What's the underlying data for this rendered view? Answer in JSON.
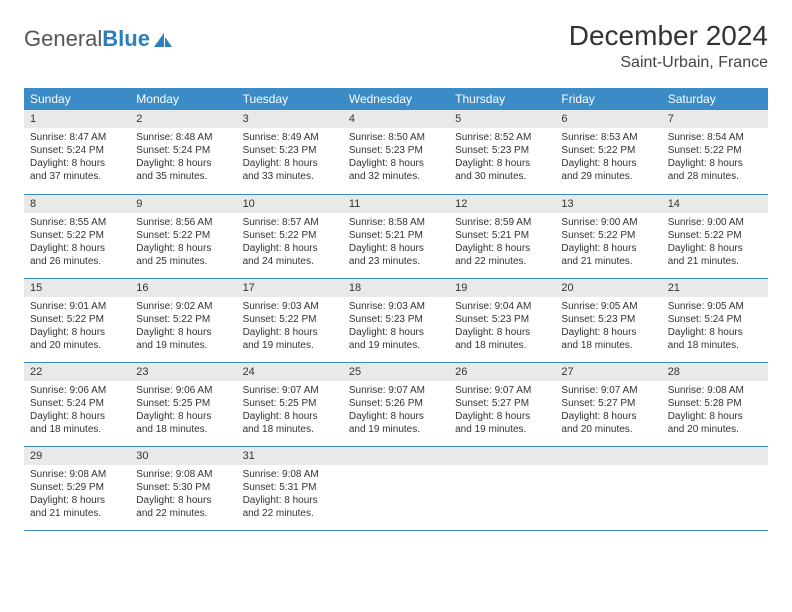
{
  "brand": {
    "part1": "General",
    "part2": "Blue",
    "accent": "#2b7fbc"
  },
  "title": "December 2024",
  "location": "Saint-Urbain, France",
  "colors": {
    "header_bg": "#3b8bc6",
    "header_text": "#ffffff",
    "daynum_bg": "#e9e9e9",
    "row_border": "#3b8bc6",
    "body_text": "#333333",
    "page_bg": "#ffffff"
  },
  "fonts": {
    "title_pt": 28,
    "location_pt": 16,
    "th_pt": 12,
    "daynum_pt": 11,
    "body_pt": 10
  },
  "weekdays": [
    "Sunday",
    "Monday",
    "Tuesday",
    "Wednesday",
    "Thursday",
    "Friday",
    "Saturday"
  ],
  "weeks": [
    [
      {
        "n": "1",
        "sr": "Sunrise: 8:47 AM",
        "ss": "Sunset: 5:24 PM",
        "d1": "Daylight: 8 hours",
        "d2": "and 37 minutes."
      },
      {
        "n": "2",
        "sr": "Sunrise: 8:48 AM",
        "ss": "Sunset: 5:24 PM",
        "d1": "Daylight: 8 hours",
        "d2": "and 35 minutes."
      },
      {
        "n": "3",
        "sr": "Sunrise: 8:49 AM",
        "ss": "Sunset: 5:23 PM",
        "d1": "Daylight: 8 hours",
        "d2": "and 33 minutes."
      },
      {
        "n": "4",
        "sr": "Sunrise: 8:50 AM",
        "ss": "Sunset: 5:23 PM",
        "d1": "Daylight: 8 hours",
        "d2": "and 32 minutes."
      },
      {
        "n": "5",
        "sr": "Sunrise: 8:52 AM",
        "ss": "Sunset: 5:23 PM",
        "d1": "Daylight: 8 hours",
        "d2": "and 30 minutes."
      },
      {
        "n": "6",
        "sr": "Sunrise: 8:53 AM",
        "ss": "Sunset: 5:22 PM",
        "d1": "Daylight: 8 hours",
        "d2": "and 29 minutes."
      },
      {
        "n": "7",
        "sr": "Sunrise: 8:54 AM",
        "ss": "Sunset: 5:22 PM",
        "d1": "Daylight: 8 hours",
        "d2": "and 28 minutes."
      }
    ],
    [
      {
        "n": "8",
        "sr": "Sunrise: 8:55 AM",
        "ss": "Sunset: 5:22 PM",
        "d1": "Daylight: 8 hours",
        "d2": "and 26 minutes."
      },
      {
        "n": "9",
        "sr": "Sunrise: 8:56 AM",
        "ss": "Sunset: 5:22 PM",
        "d1": "Daylight: 8 hours",
        "d2": "and 25 minutes."
      },
      {
        "n": "10",
        "sr": "Sunrise: 8:57 AM",
        "ss": "Sunset: 5:22 PM",
        "d1": "Daylight: 8 hours",
        "d2": "and 24 minutes."
      },
      {
        "n": "11",
        "sr": "Sunrise: 8:58 AM",
        "ss": "Sunset: 5:21 PM",
        "d1": "Daylight: 8 hours",
        "d2": "and 23 minutes."
      },
      {
        "n": "12",
        "sr": "Sunrise: 8:59 AM",
        "ss": "Sunset: 5:21 PM",
        "d1": "Daylight: 8 hours",
        "d2": "and 22 minutes."
      },
      {
        "n": "13",
        "sr": "Sunrise: 9:00 AM",
        "ss": "Sunset: 5:22 PM",
        "d1": "Daylight: 8 hours",
        "d2": "and 21 minutes."
      },
      {
        "n": "14",
        "sr": "Sunrise: 9:00 AM",
        "ss": "Sunset: 5:22 PM",
        "d1": "Daylight: 8 hours",
        "d2": "and 21 minutes."
      }
    ],
    [
      {
        "n": "15",
        "sr": "Sunrise: 9:01 AM",
        "ss": "Sunset: 5:22 PM",
        "d1": "Daylight: 8 hours",
        "d2": "and 20 minutes."
      },
      {
        "n": "16",
        "sr": "Sunrise: 9:02 AM",
        "ss": "Sunset: 5:22 PM",
        "d1": "Daylight: 8 hours",
        "d2": "and 19 minutes."
      },
      {
        "n": "17",
        "sr": "Sunrise: 9:03 AM",
        "ss": "Sunset: 5:22 PM",
        "d1": "Daylight: 8 hours",
        "d2": "and 19 minutes."
      },
      {
        "n": "18",
        "sr": "Sunrise: 9:03 AM",
        "ss": "Sunset: 5:23 PM",
        "d1": "Daylight: 8 hours",
        "d2": "and 19 minutes."
      },
      {
        "n": "19",
        "sr": "Sunrise: 9:04 AM",
        "ss": "Sunset: 5:23 PM",
        "d1": "Daylight: 8 hours",
        "d2": "and 18 minutes."
      },
      {
        "n": "20",
        "sr": "Sunrise: 9:05 AM",
        "ss": "Sunset: 5:23 PM",
        "d1": "Daylight: 8 hours",
        "d2": "and 18 minutes."
      },
      {
        "n": "21",
        "sr": "Sunrise: 9:05 AM",
        "ss": "Sunset: 5:24 PM",
        "d1": "Daylight: 8 hours",
        "d2": "and 18 minutes."
      }
    ],
    [
      {
        "n": "22",
        "sr": "Sunrise: 9:06 AM",
        "ss": "Sunset: 5:24 PM",
        "d1": "Daylight: 8 hours",
        "d2": "and 18 minutes."
      },
      {
        "n": "23",
        "sr": "Sunrise: 9:06 AM",
        "ss": "Sunset: 5:25 PM",
        "d1": "Daylight: 8 hours",
        "d2": "and 18 minutes."
      },
      {
        "n": "24",
        "sr": "Sunrise: 9:07 AM",
        "ss": "Sunset: 5:25 PM",
        "d1": "Daylight: 8 hours",
        "d2": "and 18 minutes."
      },
      {
        "n": "25",
        "sr": "Sunrise: 9:07 AM",
        "ss": "Sunset: 5:26 PM",
        "d1": "Daylight: 8 hours",
        "d2": "and 19 minutes."
      },
      {
        "n": "26",
        "sr": "Sunrise: 9:07 AM",
        "ss": "Sunset: 5:27 PM",
        "d1": "Daylight: 8 hours",
        "d2": "and 19 minutes."
      },
      {
        "n": "27",
        "sr": "Sunrise: 9:07 AM",
        "ss": "Sunset: 5:27 PM",
        "d1": "Daylight: 8 hours",
        "d2": "and 20 minutes."
      },
      {
        "n": "28",
        "sr": "Sunrise: 9:08 AM",
        "ss": "Sunset: 5:28 PM",
        "d1": "Daylight: 8 hours",
        "d2": "and 20 minutes."
      }
    ],
    [
      {
        "n": "29",
        "sr": "Sunrise: 9:08 AM",
        "ss": "Sunset: 5:29 PM",
        "d1": "Daylight: 8 hours",
        "d2": "and 21 minutes."
      },
      {
        "n": "30",
        "sr": "Sunrise: 9:08 AM",
        "ss": "Sunset: 5:30 PM",
        "d1": "Daylight: 8 hours",
        "d2": "and 22 minutes."
      },
      {
        "n": "31",
        "sr": "Sunrise: 9:08 AM",
        "ss": "Sunset: 5:31 PM",
        "d1": "Daylight: 8 hours",
        "d2": "and 22 minutes."
      },
      {
        "empty": true
      },
      {
        "empty": true
      },
      {
        "empty": true
      },
      {
        "empty": true
      }
    ]
  ]
}
